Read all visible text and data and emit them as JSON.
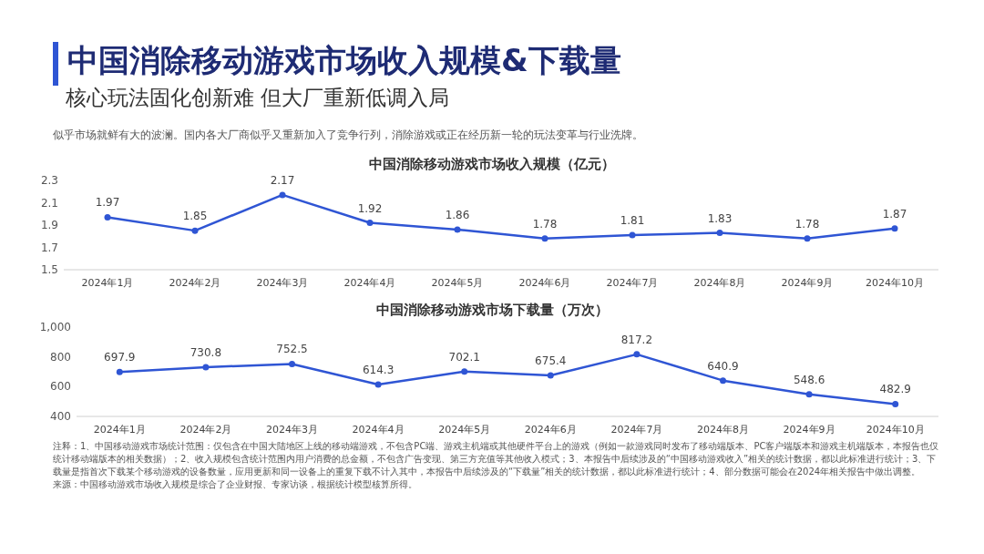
{
  "chart_data": [
    {
      "type": "other",
      "title": "中国消除移动游戏市场收入规模&下载量",
      "subtitle": "核心玩法固化创新难 但大厂重新低调入局",
      "annotations": [
        "似乎市场就鲜有大的波澜。国内各大厂商似乎又重新加入了竞争行列，消除游戏或正在经历新一轮的玩法变革与行业洗牌。"
      ]
    },
    {
      "type": "line",
      "title": "中国消除移动游戏市场收入规模（亿元）",
      "categories": [
        "2024年1月",
        "2024年2月",
        "2024年3月",
        "2024年4月",
        "2024年5月",
        "2024年6月",
        "2024年7月",
        "2024年8月",
        "2024年9月",
        "2024年10月"
      ],
      "values": [
        1.97,
        1.85,
        2.17,
        1.92,
        1.86,
        1.78,
        1.81,
        1.83,
        1.78,
        1.87
      ],
      "color": "#2f55d4",
      "ylim": [
        1.5,
        2.3
      ],
      "yticks": [
        1.5,
        1.7,
        1.9,
        2.1,
        2.3
      ],
      "data_labels": true,
      "marker": "circle",
      "grid": false
    },
    {
      "type": "line",
      "title": "中国消除移动游戏市场下载量（万次）",
      "categories": [
        "2024年1月",
        "2024年2月",
        "2024年3月",
        "2024年4月",
        "2024年5月",
        "2024年6月",
        "2024年7月",
        "2024年8月",
        "2024年9月",
        "2024年10月"
      ],
      "values": [
        697.9,
        730.8,
        752.5,
        614.3,
        702.1,
        675.4,
        817.2,
        640.9,
        548.6,
        482.9
      ],
      "color": "#2f55d4",
      "ylim": [
        400,
        1000
      ],
      "yticks": [
        400,
        600,
        800,
        {
          "value": 1000,
          "label": "1,000"
        }
      ],
      "data_labels": true,
      "marker": "circle",
      "grid": false,
      "annotations": [
        "注释：1、中国移动游戏市场统计范围：仅包含在中国大陆地区上线的移动端游戏，不包含PC端、游戏主机端或其他硬件平台上的游戏（例如一款游戏同时发布了移动端版本、PC客户端版本和游戏主机端版本，本报告也仅统计移动端版本的相关数据）；2、收入规模包含统计范围内用户消费的总金额，不包含广告变现、第三方充值等其他收入模式；3、本报告中后续涉及的“中国移动游戏收入”相关的统计数据，都以此标准进行统计；3、下载量是指首次下载某个移动游戏的设备数量，应用更新和同一设备上的重复下载不计入其中，本报告中后续涉及的“下载量”相关的统计数据，都以此标准进行统计；4、部分数据可能会在2024年相关报告中做出调整。",
        "来源：中国移动游戏市场收入规模是综合了企业财报、专家访谈，根据统计模型核算所得。"
      ]
    }
  ]
}
